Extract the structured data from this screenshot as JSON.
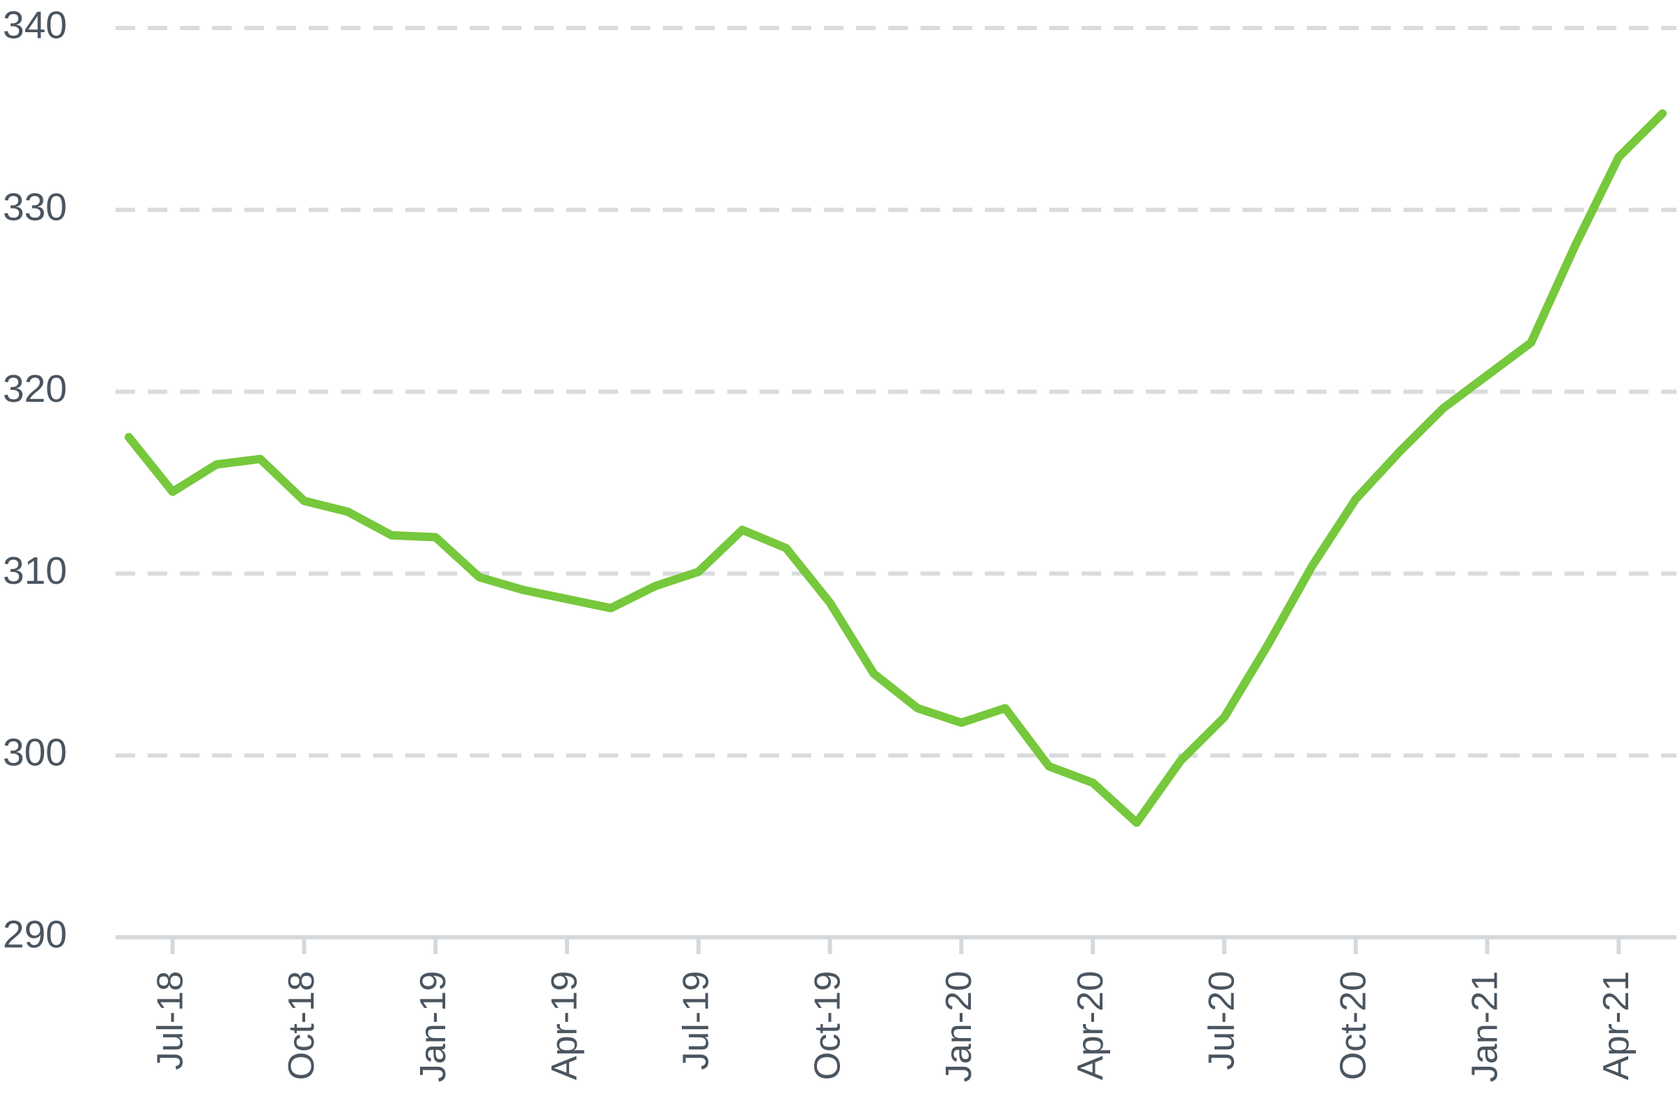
{
  "chart_data": {
    "type": "line",
    "categories": [
      null,
      "Jul-18",
      null,
      null,
      "Oct-18",
      null,
      null,
      "Jan-19",
      null,
      null,
      "Apr-19",
      null,
      null,
      "Jul-19",
      null,
      null,
      "Oct-19",
      null,
      null,
      "Jan-20",
      null,
      null,
      "Apr-20",
      null,
      null,
      "Jul-20",
      null,
      null,
      "Oct-20",
      null,
      null,
      "Jan-21",
      null,
      null,
      "Apr-21",
      null
    ],
    "series": [
      {
        "color": "#76c83c",
        "values": [
          317.5,
          314.5,
          316.0,
          316.3,
          314.0,
          313.4,
          312.1,
          312.0,
          309.8,
          309.1,
          308.6,
          308.1,
          309.3,
          310.1,
          312.4,
          311.4,
          308.4,
          304.5,
          302.6,
          301.8,
          302.6,
          299.4,
          298.5,
          296.3,
          299.7,
          302.1,
          306.1,
          310.4,
          314.1,
          316.7,
          319.1,
          320.9,
          322.7,
          328.0,
          332.9,
          335.3
        ]
      }
    ],
    "ylim": [
      290,
      340
    ],
    "yticks": [
      290,
      300,
      310,
      320,
      330,
      340
    ],
    "grid": true
  }
}
